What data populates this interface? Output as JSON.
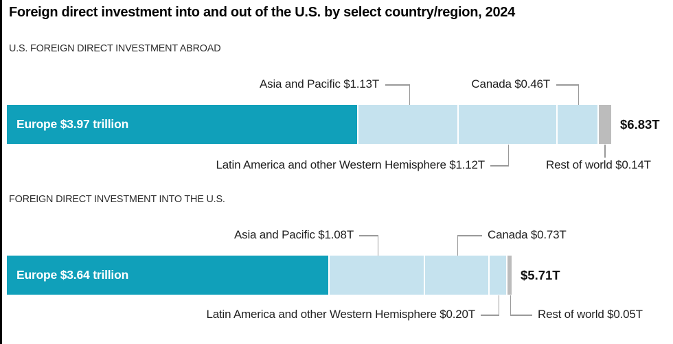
{
  "title": "Foreign direct investment into and out of the U.S. by select country/region, 2024",
  "colors": {
    "europe_teal": "#10a0ba",
    "region_light_blue": "#c5e2ee",
    "rest_of_world_gray": "#bcbcbc",
    "leader_line": "#999999",
    "left_border": "#000000"
  },
  "chart_data": [
    {
      "type": "bar",
      "orientation": "horizontal-stacked",
      "section_label": "U.S. FOREIGN DIRECT INVESTMENT ABROAD",
      "unit": "trillion USD",
      "total_value": 6.83,
      "total_label": "$6.83T",
      "segments": [
        {
          "label": "Europe",
          "value": 3.97,
          "display": "Europe $3.97 trillion",
          "color": "#10a0ba"
        },
        {
          "label": "Asia and Pacific",
          "value": 1.13,
          "display": "Asia and Pacific $1.13T",
          "color": "#c5e2ee"
        },
        {
          "label": "Latin America and other Western Hemisphere",
          "value": 1.12,
          "display": "Latin America and other Western Hemisphere $1.12T",
          "color": "#c5e2ee"
        },
        {
          "label": "Canada",
          "value": 0.46,
          "display": "Canada $0.46T",
          "color": "#c5e2ee"
        },
        {
          "label": "Rest of world",
          "value": 0.14,
          "display": "Rest of world $0.14T",
          "color": "#bcbcbc"
        }
      ]
    },
    {
      "type": "bar",
      "orientation": "horizontal-stacked",
      "section_label": "FOREIGN DIRECT INVESTMENT INTO THE U.S.",
      "unit": "trillion USD",
      "total_value": 5.71,
      "total_label": "$5.71T",
      "segments": [
        {
          "label": "Europe",
          "value": 3.64,
          "display": "Europe $3.64 trillion",
          "color": "#10a0ba"
        },
        {
          "label": "Asia and Pacific",
          "value": 1.08,
          "display": "Asia and Pacific $1.08T",
          "color": "#c5e2ee"
        },
        {
          "label": "Canada",
          "value": 0.73,
          "display": "Canada $0.73T",
          "color": "#c5e2ee"
        },
        {
          "label": "Latin America and other Western Hemisphere",
          "value": 0.2,
          "display": "Latin America and other Western Hemisphere $0.20T",
          "color": "#c5e2ee"
        },
        {
          "label": "Rest of world",
          "value": 0.05,
          "display": "Rest of world $0.05T",
          "color": "#bcbcbc"
        }
      ]
    }
  ]
}
